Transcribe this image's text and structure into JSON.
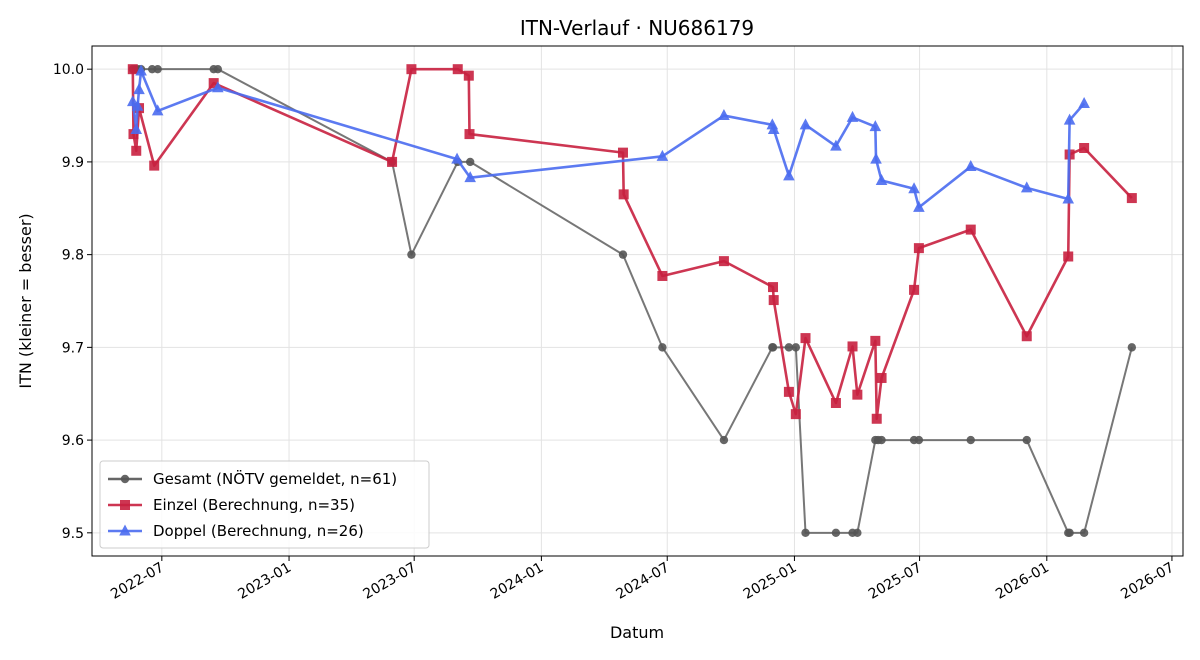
{
  "chart_data": {
    "type": "line",
    "title": "ITN-Verlauf · NU686179",
    "xlabel": "Datum",
    "ylabel": "ITN  (kleiner = besser)",
    "x_axis_type": "date",
    "xlim": [
      "2022-03-22",
      "2026-07-17"
    ],
    "ylim": [
      9.475,
      10.025
    ],
    "y_ticks": [
      9.5,
      9.6,
      9.7,
      9.8,
      9.9,
      10.0
    ],
    "y_tick_labels": [
      "9.5",
      "9.6",
      "9.7",
      "9.8",
      "9.9",
      "10.0"
    ],
    "x_ticks": [
      "2022-07-01",
      "2023-01-01",
      "2023-07-01",
      "2024-01-01",
      "2024-07-01",
      "2025-01-01",
      "2025-07-01",
      "2026-01-01",
      "2026-07-01"
    ],
    "x_tick_labels": [
      "2022-07",
      "2023-01",
      "2023-07",
      "2024-01",
      "2024-07",
      "2025-01",
      "2025-07",
      "2026-01",
      "2026-07"
    ],
    "grid": true,
    "legend_position": "lower-left",
    "series": [
      {
        "name": "Gesamt (NÖTV gemeldet, n=61)",
        "color": "#555555",
        "marker": "circle",
        "points": [
          [
            "2022-05-20",
            10.0
          ],
          [
            "2022-05-24",
            10.0
          ],
          [
            "2022-05-28",
            10.0
          ],
          [
            "2022-06-01",
            10.0
          ],
          [
            "2022-06-17",
            10.0
          ],
          [
            "2022-06-25",
            10.0
          ],
          [
            "2022-09-14",
            10.0
          ],
          [
            "2022-09-20",
            10.0
          ],
          [
            "2023-05-30",
            9.9
          ],
          [
            "2023-06-27",
            9.8
          ],
          [
            "2023-09-02",
            9.9
          ],
          [
            "2023-09-20",
            9.9
          ],
          [
            "2024-04-28",
            9.8
          ],
          [
            "2024-06-24",
            9.7
          ],
          [
            "2024-09-21",
            9.6
          ],
          [
            "2024-11-30",
            9.7
          ],
          [
            "2024-12-01",
            9.7
          ],
          [
            "2024-12-24",
            9.7
          ],
          [
            "2025-01-03",
            9.7
          ],
          [
            "2025-01-17",
            9.5
          ],
          [
            "2025-03-02",
            9.5
          ],
          [
            "2025-03-26",
            9.5
          ],
          [
            "2025-04-02",
            9.5
          ],
          [
            "2025-04-28",
            9.6
          ],
          [
            "2025-05-02",
            9.6
          ],
          [
            "2025-05-07",
            9.6
          ],
          [
            "2025-06-23",
            9.6
          ],
          [
            "2025-06-30",
            9.6
          ],
          [
            "2025-09-13",
            9.6
          ],
          [
            "2025-12-03",
            9.6
          ],
          [
            "2026-02-01",
            9.5
          ],
          [
            "2026-02-03",
            9.5
          ],
          [
            "2026-02-24",
            9.5
          ],
          [
            "2026-05-04",
            9.7
          ]
        ]
      },
      {
        "name": "Einzel (Berechnung, n=35)",
        "color": "#c8203f",
        "marker": "square",
        "points": [
          [
            "2022-05-20",
            10.0
          ],
          [
            "2022-05-21",
            9.93
          ],
          [
            "2022-05-25",
            9.912
          ],
          [
            "2022-05-29",
            9.958
          ],
          [
            "2022-06-20",
            9.896
          ],
          [
            "2022-09-14",
            9.985
          ],
          [
            "2023-05-30",
            9.9
          ],
          [
            "2023-06-27",
            10.0
          ],
          [
            "2023-09-02",
            10.0
          ],
          [
            "2023-09-18",
            9.993
          ],
          [
            "2023-09-19",
            9.93
          ],
          [
            "2024-04-28",
            9.91
          ],
          [
            "2024-04-29",
            9.865
          ],
          [
            "2024-06-24",
            9.777
          ],
          [
            "2024-09-21",
            9.793
          ],
          [
            "2024-12-01",
            9.765
          ],
          [
            "2024-12-02",
            9.751
          ],
          [
            "2024-12-24",
            9.652
          ],
          [
            "2025-01-03",
            9.628
          ],
          [
            "2025-01-17",
            9.71
          ],
          [
            "2025-03-02",
            9.64
          ],
          [
            "2025-03-26",
            9.701
          ],
          [
            "2025-04-02",
            9.649
          ],
          [
            "2025-04-28",
            9.707
          ],
          [
            "2025-04-30",
            9.623
          ],
          [
            "2025-05-07",
            9.667
          ],
          [
            "2025-06-23",
            9.762
          ],
          [
            "2025-06-30",
            9.807
          ],
          [
            "2025-09-13",
            9.827
          ],
          [
            "2025-12-03",
            9.712
          ],
          [
            "2026-02-01",
            9.798
          ],
          [
            "2026-02-03",
            9.908
          ],
          [
            "2026-02-24",
            9.915
          ],
          [
            "2026-05-04",
            9.861
          ]
        ]
      },
      {
        "name": "Doppel (Berechnung, n=26)",
        "color": "#4a6cf0",
        "marker": "triangle",
        "points": [
          [
            "2022-05-20",
            9.965
          ],
          [
            "2022-05-25",
            9.935
          ],
          [
            "2022-05-27",
            9.96
          ],
          [
            "2022-05-29",
            9.978
          ],
          [
            "2022-06-01",
            9.998
          ],
          [
            "2022-06-25",
            9.955
          ],
          [
            "2022-09-20",
            9.98
          ],
          [
            "2023-09-01",
            9.903
          ],
          [
            "2023-09-20",
            9.883
          ],
          [
            "2024-06-24",
            9.906
          ],
          [
            "2024-09-21",
            9.95
          ],
          [
            "2024-11-30",
            9.94
          ],
          [
            "2024-12-02",
            9.935
          ],
          [
            "2024-12-24",
            9.885
          ],
          [
            "2025-01-17",
            9.94
          ],
          [
            "2025-03-02",
            9.917
          ],
          [
            "2025-03-26",
            9.948
          ],
          [
            "2025-04-28",
            9.938
          ],
          [
            "2025-04-29",
            9.903
          ],
          [
            "2025-05-07",
            9.88
          ],
          [
            "2025-06-23",
            9.871
          ],
          [
            "2025-06-30",
            9.851
          ],
          [
            "2025-09-13",
            9.895
          ],
          [
            "2025-12-03",
            9.872
          ],
          [
            "2026-02-01",
            9.86
          ],
          [
            "2026-02-03",
            9.945
          ],
          [
            "2026-02-24",
            9.963
          ]
        ]
      }
    ]
  }
}
